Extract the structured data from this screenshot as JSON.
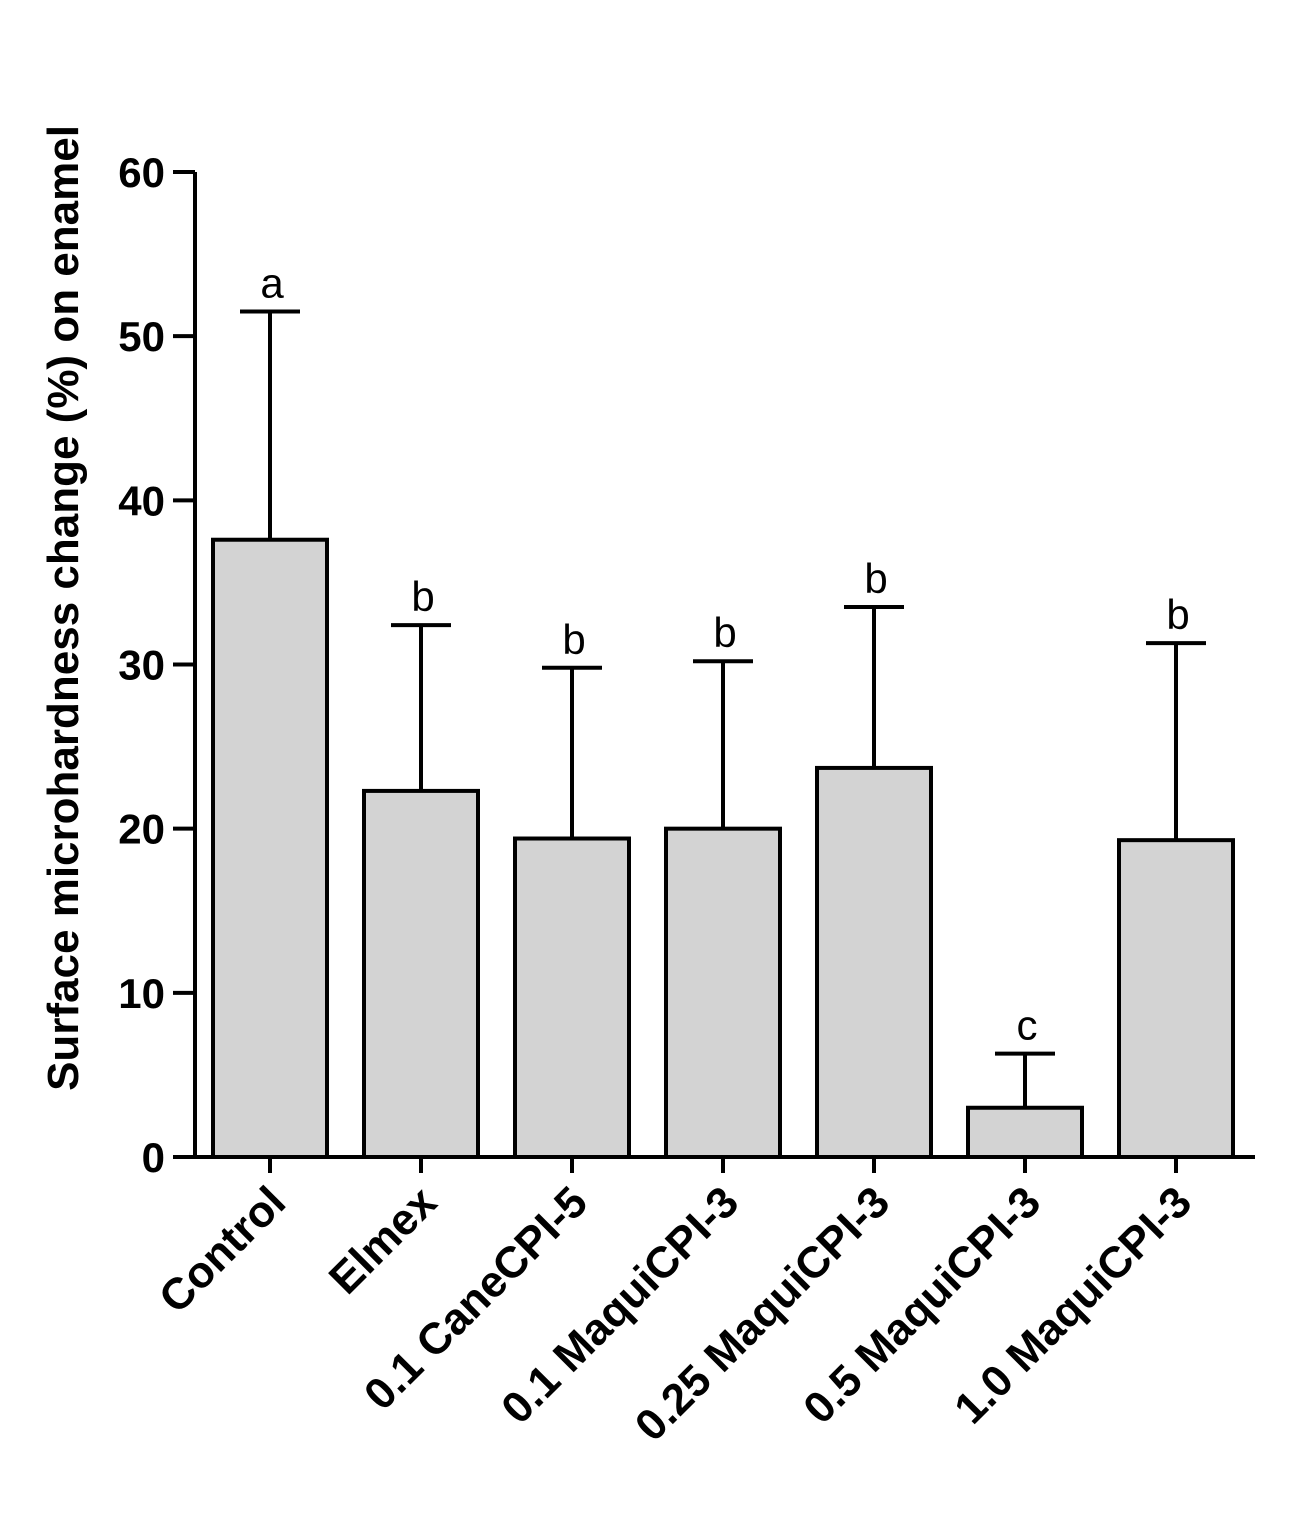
{
  "chart_data": {
    "type": "bar",
    "title": "",
    "xlabel": "",
    "ylabel": "Surface microhardness change (%) on enamel",
    "ylim": [
      0,
      60
    ],
    "yticks": [
      0,
      10,
      20,
      30,
      40,
      50,
      60
    ],
    "categories": [
      "Control",
      "Elmex",
      "0.1 CaneCPI-5",
      "0.1 MaquiCPI-3",
      "0.25 MaquiCPI-3",
      "0.5 MaquiCPI-3",
      "1.0 MaquiCPI-3"
    ],
    "values": [
      37.6,
      22.3,
      19.4,
      20.0,
      23.7,
      3.0,
      19.3
    ],
    "errors": [
      13.9,
      10.1,
      10.4,
      10.2,
      9.8,
      3.3,
      12.0
    ],
    "significance_labels": [
      "a",
      "b",
      "b",
      "b",
      "b",
      "c",
      "b"
    ],
    "bar_color": "#d3d3d3",
    "edge_color": "#000000",
    "grid": false
  }
}
